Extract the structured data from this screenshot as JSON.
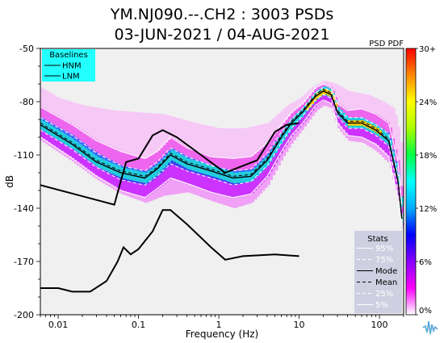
{
  "chart_data": {
    "type": "heatmap",
    "title_line1": "YM.NJ090.--.CH2 : 3003 PSDs",
    "title_line2": "03-JUN-2021 / 04-AUG-2021",
    "xlabel": "Frequency (Hz)",
    "ylabel": "dB",
    "xscale": "log",
    "xlim": [
      0.006,
      200
    ],
    "ylim": [
      -200,
      -50
    ],
    "x_ticks": [
      0.01,
      0.1,
      1,
      10,
      100
    ],
    "x_tick_labels": [
      "0.01",
      "0.1",
      "1",
      "10",
      "100"
    ],
    "y_ticks": [
      -50,
      -80,
      -110,
      -140,
      -170,
      -200
    ],
    "y_tick_labels": [
      "-50",
      "-80",
      "-110",
      "-140",
      "-170",
      "-200"
    ],
    "colorbar": {
      "label": "PSD PDF",
      "ticks": [
        0,
        6,
        12,
        18,
        24,
        30
      ],
      "tick_labels": [
        "0%",
        "6%",
        "12%",
        "18%",
        "24%",
        "30+"
      ],
      "colors": [
        "#ffffff",
        "#ff00ff",
        "#8800ff",
        "#0000ff",
        "#00aaff",
        "#00ffff",
        "#00ff44",
        "#aaff00",
        "#ffff00",
        "#ff8800",
        "#ff0000"
      ]
    },
    "baselines": {
      "title": "Baselines",
      "items": [
        "HNM",
        "LNM"
      ],
      "bg_color": "#22ffff"
    },
    "stats": {
      "title": "Stats",
      "items": [
        "95%",
        "75%",
        "Mode",
        "Mean",
        "25%",
        "5%"
      ],
      "bg_color": "#cfcfe2"
    },
    "hnm": [
      [
        0.006,
        -127
      ],
      [
        0.05,
        -138
      ],
      [
        0.07,
        -114
      ],
      [
        0.1,
        -112
      ],
      [
        0.15,
        -99
      ],
      [
        0.2,
        -96
      ],
      [
        0.3,
        -100
      ],
      [
        1.2,
        -120
      ],
      [
        3,
        -113
      ],
      [
        5,
        -97
      ],
      [
        7,
        -93
      ],
      [
        10,
        -92
      ]
    ],
    "lnm": [
      [
        0.006,
        -185
      ],
      [
        0.01,
        -185
      ],
      [
        0.015,
        -187
      ],
      [
        0.025,
        -187
      ],
      [
        0.04,
        -181
      ],
      [
        0.055,
        -170
      ],
      [
        0.065,
        -162
      ],
      [
        0.08,
        -166
      ],
      [
        0.1,
        -163
      ],
      [
        0.15,
        -153
      ],
      [
        0.2,
        -141
      ],
      [
        0.25,
        -141
      ],
      [
        0.4,
        -149
      ],
      [
        0.8,
        -162
      ],
      [
        1.2,
        -169
      ],
      [
        2,
        -167
      ],
      [
        5,
        -166
      ],
      [
        10,
        -167
      ]
    ],
    "mode": [
      [
        0.006,
        -93
      ],
      [
        0.015,
        -104
      ],
      [
        0.03,
        -114
      ],
      [
        0.06,
        -120
      ],
      [
        0.12,
        -123
      ],
      [
        0.17,
        -118
      ],
      [
        0.25,
        -110
      ],
      [
        0.4,
        -115
      ],
      [
        0.8,
        -119
      ],
      [
        1.5,
        -123
      ],
      [
        2.5,
        -122
      ],
      [
        4,
        -113
      ],
      [
        6,
        -100
      ],
      [
        8,
        -92
      ],
      [
        11,
        -86
      ],
      [
        16,
        -77
      ],
      [
        20,
        -74
      ],
      [
        25,
        -76
      ],
      [
        30,
        -86
      ],
      [
        40,
        -92
      ],
      [
        60,
        -92
      ],
      [
        90,
        -96
      ],
      [
        130,
        -102
      ],
      [
        170,
        -125
      ],
      [
        190,
        -146
      ]
    ],
    "p95": [
      [
        0.006,
        -83
      ],
      [
        0.015,
        -93
      ],
      [
        0.03,
        -102
      ],
      [
        0.06,
        -108
      ],
      [
        0.12,
        -112
      ],
      [
        0.17,
        -108
      ],
      [
        0.25,
        -100
      ],
      [
        0.4,
        -106
      ],
      [
        0.8,
        -111
      ],
      [
        1.5,
        -112
      ],
      [
        2.5,
        -111
      ],
      [
        4,
        -103
      ],
      [
        6,
        -93
      ],
      [
        8,
        -86
      ],
      [
        11,
        -81
      ],
      [
        16,
        -72
      ],
      [
        20,
        -70
      ],
      [
        25,
        -72
      ],
      [
        30,
        -81
      ],
      [
        40,
        -85
      ],
      [
        60,
        -84
      ],
      [
        90,
        -87
      ],
      [
        130,
        -92
      ],
      [
        170,
        -114
      ],
      [
        190,
        -138
      ]
    ],
    "p75": [
      [
        0.006,
        -89
      ],
      [
        0.015,
        -99
      ],
      [
        0.03,
        -109
      ],
      [
        0.06,
        -116
      ],
      [
        0.12,
        -119
      ],
      [
        0.17,
        -114
      ],
      [
        0.25,
        -106
      ],
      [
        0.4,
        -111
      ],
      [
        0.8,
        -116
      ],
      [
        1.5,
        -119
      ],
      [
        2.5,
        -118
      ],
      [
        4,
        -109
      ],
      [
        6,
        -97
      ],
      [
        8,
        -90
      ],
      [
        11,
        -84
      ],
      [
        16,
        -75
      ],
      [
        20,
        -72
      ],
      [
        25,
        -74
      ],
      [
        30,
        -84
      ],
      [
        40,
        -89
      ],
      [
        60,
        -89
      ],
      [
        90,
        -93
      ],
      [
        130,
        -98
      ],
      [
        170,
        -121
      ],
      [
        190,
        -143
      ]
    ],
    "mean": [
      [
        0.006,
        -92
      ],
      [
        0.015,
        -103
      ],
      [
        0.03,
        -113
      ],
      [
        0.06,
        -119
      ],
      [
        0.12,
        -122
      ],
      [
        0.17,
        -117
      ],
      [
        0.25,
        -109
      ],
      [
        0.4,
        -114
      ],
      [
        0.8,
        -118
      ],
      [
        1.5,
        -122
      ],
      [
        2.5,
        -121
      ],
      [
        4,
        -112
      ],
      [
        6,
        -99
      ],
      [
        8,
        -91
      ],
      [
        11,
        -85
      ],
      [
        16,
        -76
      ],
      [
        20,
        -73
      ],
      [
        25,
        -75
      ],
      [
        30,
        -85
      ],
      [
        40,
        -91
      ],
      [
        60,
        -91
      ],
      [
        90,
        -95
      ],
      [
        130,
        -101
      ],
      [
        170,
        -124
      ],
      [
        190,
        -145
      ]
    ],
    "p25": [
      [
        0.006,
        -96
      ],
      [
        0.015,
        -107
      ],
      [
        0.03,
        -117
      ],
      [
        0.06,
        -124
      ],
      [
        0.12,
        -127
      ],
      [
        0.17,
        -122
      ],
      [
        0.25,
        -115
      ],
      [
        0.4,
        -119
      ],
      [
        0.8,
        -123
      ],
      [
        1.5,
        -127
      ],
      [
        2.5,
        -125
      ],
      [
        4,
        -116
      ],
      [
        6,
        -103
      ],
      [
        8,
        -95
      ],
      [
        11,
        -88
      ],
      [
        16,
        -79
      ],
      [
        20,
        -76
      ],
      [
        25,
        -78
      ],
      [
        30,
        -88
      ],
      [
        40,
        -95
      ],
      [
        60,
        -95
      ],
      [
        90,
        -99
      ],
      [
        130,
        -105
      ],
      [
        170,
        -128
      ],
      [
        190,
        -148
      ]
    ],
    "p5": [
      [
        0.006,
        -100
      ],
      [
        0.015,
        -112
      ],
      [
        0.03,
        -122
      ],
      [
        0.06,
        -130
      ],
      [
        0.12,
        -134
      ],
      [
        0.17,
        -129
      ],
      [
        0.25,
        -123
      ],
      [
        0.4,
        -126
      ],
      [
        0.8,
        -131
      ],
      [
        1.5,
        -134
      ],
      [
        2.5,
        -132
      ],
      [
        4,
        -122
      ],
      [
        6,
        -108
      ],
      [
        8,
        -99
      ],
      [
        11,
        -92
      ],
      [
        16,
        -82
      ],
      [
        20,
        -79
      ],
      [
        25,
        -81
      ],
      [
        30,
        -92
      ],
      [
        40,
        -99
      ],
      [
        60,
        -100
      ],
      [
        90,
        -104
      ],
      [
        130,
        -111
      ],
      [
        170,
        -134
      ],
      [
        190,
        -150
      ]
    ],
    "outer_envelope_top": [
      [
        0.006,
        -72
      ],
      [
        0.01,
        -78
      ],
      [
        0.02,
        -82
      ],
      [
        0.05,
        -85
      ],
      [
        0.1,
        -86
      ],
      [
        0.2,
        -87
      ],
      [
        0.5,
        -92
      ],
      [
        1,
        -95
      ],
      [
        2,
        -95
      ],
      [
        4,
        -92
      ],
      [
        7,
        -82
      ],
      [
        10,
        -78
      ],
      [
        14,
        -72
      ],
      [
        20,
        -68
      ],
      [
        28,
        -70
      ],
      [
        40,
        -74
      ],
      [
        70,
        -76
      ],
      [
        110,
        -80
      ],
      [
        150,
        -84
      ],
      [
        180,
        -100
      ],
      [
        195,
        -140
      ]
    ],
    "outer_envelope_bottom": [
      [
        0.006,
        -102
      ],
      [
        0.015,
        -114
      ],
      [
        0.03,
        -124
      ],
      [
        0.06,
        -132
      ],
      [
        0.12,
        -137
      ],
      [
        0.2,
        -133
      ],
      [
        0.4,
        -131
      ],
      [
        0.8,
        -136
      ],
      [
        1.5,
        -140
      ],
      [
        2.5,
        -137
      ],
      [
        4,
        -127
      ],
      [
        6,
        -112
      ],
      [
        8,
        -103
      ],
      [
        11,
        -95
      ],
      [
        16,
        -85
      ],
      [
        20,
        -82
      ],
      [
        25,
        -84
      ],
      [
        30,
        -95
      ],
      [
        40,
        -102
      ],
      [
        60,
        -103
      ],
      [
        90,
        -108
      ],
      [
        130,
        -115
      ],
      [
        170,
        -137
      ],
      [
        195,
        -152
      ]
    ]
  }
}
